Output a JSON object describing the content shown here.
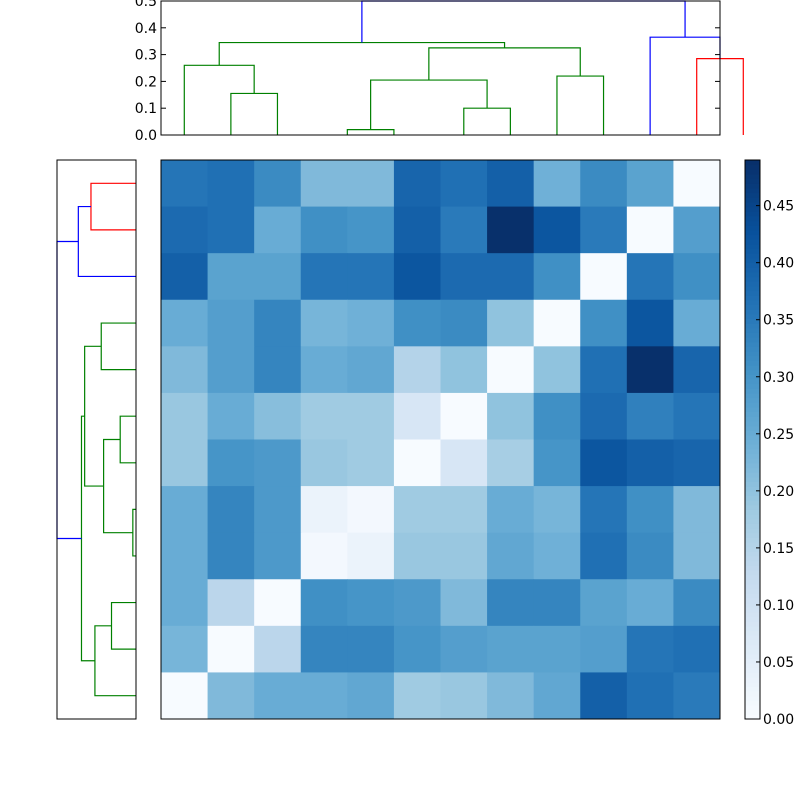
{
  "chart_data": [
    {
      "type": "heatmap",
      "title": "",
      "xlabel": "",
      "ylabel": "",
      "colormap": "Blues",
      "vmin": 0.0,
      "vmax": 0.49,
      "colorbar": {
        "ticks": [
          0.0,
          0.05,
          0.1,
          0.15,
          0.2,
          0.25,
          0.3,
          0.35,
          0.4,
          0.45
        ],
        "tick_labels": [
          "0.00",
          "0.05",
          "0.10",
          "0.15",
          "0.20",
          "0.25",
          "0.30",
          "0.35",
          "0.40",
          "0.45"
        ]
      },
      "values": [
        [
          0.36,
          0.37,
          0.32,
          0.22,
          0.22,
          0.39,
          0.37,
          0.4,
          0.24,
          0.32,
          0.27,
          0.0
        ],
        [
          0.38,
          0.37,
          0.25,
          0.31,
          0.3,
          0.4,
          0.35,
          0.49,
          0.42,
          0.35,
          0.0,
          0.28
        ],
        [
          0.4,
          0.27,
          0.27,
          0.36,
          0.36,
          0.42,
          0.38,
          0.38,
          0.31,
          0.0,
          0.36,
          0.31
        ],
        [
          0.25,
          0.28,
          0.33,
          0.23,
          0.24,
          0.31,
          0.32,
          0.2,
          0.0,
          0.31,
          0.42,
          0.25
        ],
        [
          0.22,
          0.28,
          0.33,
          0.25,
          0.26,
          0.15,
          0.2,
          0.0,
          0.2,
          0.37,
          0.49,
          0.39
        ],
        [
          0.19,
          0.25,
          0.21,
          0.18,
          0.18,
          0.08,
          0.0,
          0.2,
          0.31,
          0.38,
          0.34,
          0.36
        ],
        [
          0.19,
          0.3,
          0.29,
          0.19,
          0.18,
          0.0,
          0.08,
          0.17,
          0.3,
          0.42,
          0.4,
          0.39
        ],
        [
          0.25,
          0.33,
          0.29,
          0.03,
          0.01,
          0.18,
          0.18,
          0.25,
          0.23,
          0.36,
          0.31,
          0.22
        ],
        [
          0.25,
          0.33,
          0.29,
          0.01,
          0.03,
          0.19,
          0.19,
          0.26,
          0.24,
          0.37,
          0.32,
          0.22
        ],
        [
          0.25,
          0.14,
          0.0,
          0.31,
          0.3,
          0.29,
          0.22,
          0.33,
          0.33,
          0.27,
          0.25,
          0.32
        ],
        [
          0.23,
          0.0,
          0.14,
          0.33,
          0.33,
          0.3,
          0.28,
          0.27,
          0.27,
          0.28,
          0.36,
          0.37
        ],
        [
          0.0,
          0.22,
          0.25,
          0.25,
          0.26,
          0.18,
          0.19,
          0.22,
          0.26,
          0.4,
          0.37,
          0.35
        ]
      ]
    },
    {
      "type": "dendrogram",
      "orientation": "top",
      "ylim": [
        0.0,
        0.5
      ],
      "yticks": [
        0.0,
        0.1,
        0.2,
        0.3,
        0.4,
        0.5
      ],
      "ytick_labels": [
        "0.0",
        "0.1",
        "0.2",
        "0.3",
        "0.4",
        "0.5"
      ],
      "links": [
        {
          "left": 2,
          "right": 3,
          "height": 0.155,
          "color": "#008000"
        },
        {
          "left": 1,
          "right": 2.5,
          "height": 0.26,
          "color": "#008000"
        },
        {
          "left": 4.5,
          "right": 5.5,
          "height": 0.02,
          "color": "#008000"
        },
        {
          "left": 7,
          "right": 8,
          "height": 0.1,
          "color": "#008000"
        },
        {
          "left": 5,
          "right": 7.5,
          "height": 0.205,
          "color": "#008000"
        },
        {
          "left": 9,
          "right": 10,
          "height": 0.22,
          "color": "#008000"
        },
        {
          "left": 6.25,
          "right": 9.5,
          "height": 0.325,
          "color": "#008000"
        },
        {
          "left": 1.75,
          "right": 7.875,
          "height": 0.345,
          "color": "#008000"
        },
        {
          "left": 12,
          "right": 13,
          "height": 0.285,
          "color": "#ff0000"
        },
        {
          "left": 11,
          "right": 12.5,
          "height": 0.365,
          "color": "#0000ff"
        },
        {
          "left": 4.8125,
          "right": 11.75,
          "height": 0.5,
          "color": "#0000ff"
        }
      ]
    },
    {
      "type": "dendrogram",
      "orientation": "left",
      "xlim": [
        0.5,
        0.0
      ],
      "links": [
        {
          "top": 1,
          "bottom": 2,
          "height": 0.285,
          "color": "#ff0000"
        },
        {
          "top": 1.5,
          "bottom": 3,
          "height": 0.365,
          "color": "#0000ff"
        },
        {
          "top": 4,
          "bottom": 5,
          "height": 0.22,
          "color": "#008000"
        },
        {
          "top": 6,
          "bottom": 7,
          "height": 0.1,
          "color": "#008000"
        },
        {
          "top": 8,
          "bottom": 9,
          "height": 0.02,
          "color": "#008000"
        },
        {
          "top": 6.5,
          "bottom": 8.5,
          "height": 0.205,
          "color": "#008000"
        },
        {
          "top": 4.5,
          "bottom": 7.5,
          "height": 0.325,
          "color": "#008000"
        },
        {
          "top": 10,
          "bottom": 11,
          "height": 0.155,
          "color": "#008000"
        },
        {
          "top": 10.5,
          "bottom": 12,
          "height": 0.26,
          "color": "#008000"
        },
        {
          "top": 6,
          "bottom": 11.25,
          "height": 0.345,
          "color": "#008000"
        },
        {
          "top": 2.25,
          "bottom": 8.625,
          "height": 0.5,
          "color": "#0000ff"
        }
      ]
    }
  ]
}
